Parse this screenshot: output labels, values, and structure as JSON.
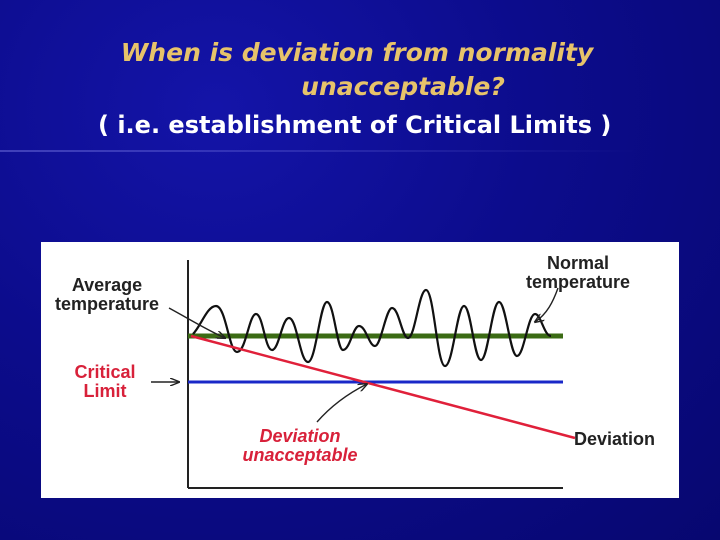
{
  "title": {
    "line1": "When is deviation from normality",
    "line2": "unacceptable?"
  },
  "subtitle": "( i.e. establishment of Critical Limits )",
  "diagram": {
    "labels": {
      "average_temperature": "Average\ntemperature",
      "normal_temperature": "Normal\ntemperature",
      "critical_limit": "Critical\nLimit",
      "deviation_unacceptable": "Deviation\nunacceptable",
      "deviation": "Deviation"
    },
    "colors": {
      "background": "#0c0c88",
      "title": "#e7c36a",
      "average_line": "#3b6b14",
      "critical_line": "#1a28c8",
      "deviation_line": "#e0203a",
      "label_red": "#d8213a",
      "label_dark": "#222222"
    }
  }
}
